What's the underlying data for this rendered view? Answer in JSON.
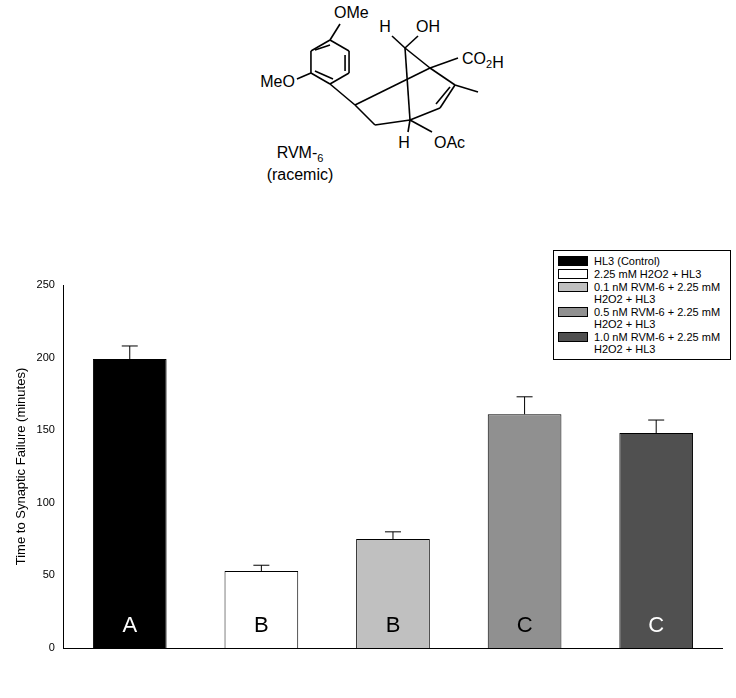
{
  "structure": {
    "name": "RVM-6",
    "caption": "(racemic)",
    "labels": {
      "top_methoxy": "OMe",
      "left_methoxy": "MeO",
      "bridge_h": "H",
      "hydroxyl": "OH",
      "acid": "CO2H",
      "lower_h": "H",
      "acetate": "OAc"
    }
  },
  "chart_data": {
    "type": "bar",
    "y_label": "Time to Synaptic Failure (minutes)",
    "categories": [
      "HL3 (Control)",
      "2.25 mM H2O2 + HL3",
      "0.1 nM RVM-6 + 2.25 mM H2O2 + HL3",
      "0.5 nM RVM-6 + 2.25 mM H2O2 + HL3",
      "1.0 nM RVM-6 + 2.25 mM H2O2 + HL3"
    ],
    "values": [
      199,
      53,
      75,
      161,
      148
    ],
    "errors": [
      9,
      4,
      5,
      12,
      9
    ],
    "group_labels": [
      "A",
      "B",
      "B",
      "C",
      "C"
    ],
    "colors": [
      "#000000",
      "#ffffff",
      "#c0c0c0",
      "#909090",
      "#505050"
    ],
    "ylim": [
      0,
      250
    ],
    "yticks": [
      0,
      50,
      100,
      150,
      200,
      250
    ],
    "grid": false,
    "legend": "upper right",
    "tick_labels": "y"
  }
}
